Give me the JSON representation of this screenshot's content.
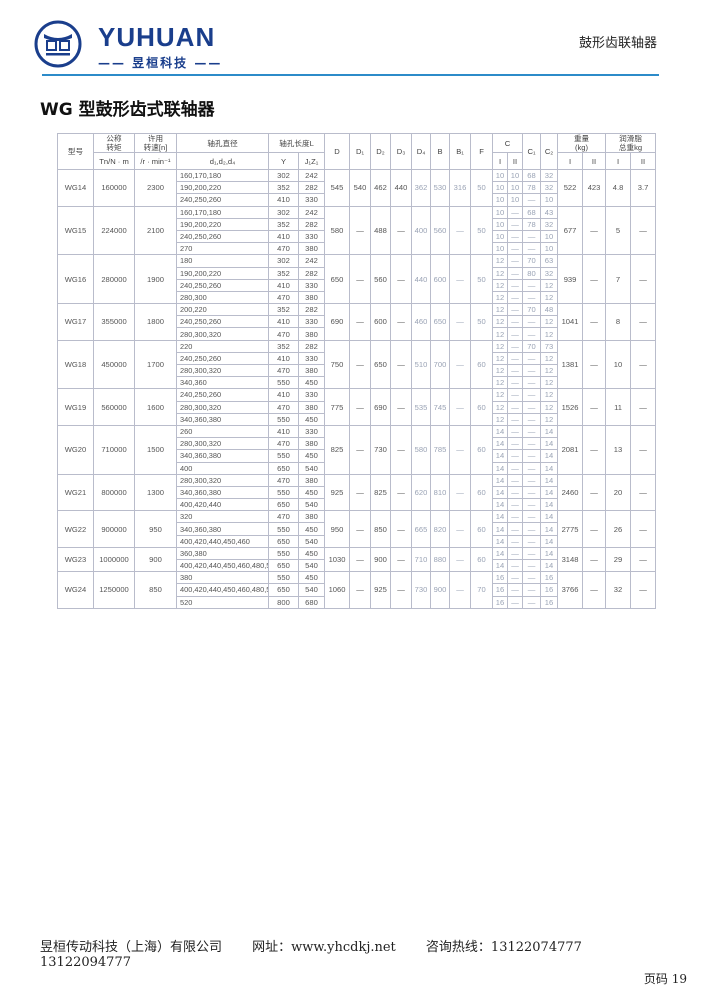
{
  "header": {
    "brand": "YUHUAN",
    "brand_cn": "—— 昱桓科技 ——",
    "section": "鼓形齿联轴器",
    "accent_color": "#2c8bc9",
    "brand_color": "#1a3e8c"
  },
  "title": "WG 型鼓形齿式联轴器",
  "table": {
    "header_top": [
      "型号",
      "公称\n转矩",
      "许用\n转速[n]",
      "轴孔直径",
      "轴孔长度L",
      "D",
      "D₁",
      "D₂",
      "D₃",
      "D₄",
      "B",
      "B₁",
      "F",
      "C",
      "C₁",
      "C₂",
      "重量\n(kg)",
      "润滑脂\n总重kg"
    ],
    "header_sub": [
      "Tn/N · m",
      "/r · min⁻¹",
      "d₁,d₂,d₄",
      "Y",
      "J₁Z₁",
      "I",
      "II",
      "I",
      "II",
      "I",
      "II"
    ],
    "groups": [
      {
        "model": "WG14",
        "torque": "160000",
        "speed": "2300",
        "D": "545",
        "D1": "540",
        "D2": "462",
        "D3": "440",
        "D4": "362",
        "B": "530",
        "B1": "316",
        "F": "50",
        "wI": "522",
        "wII": "423",
        "gI": "4.8",
        "gII": "3.7",
        "rows": [
          [
            "160,170,180",
            "302",
            "242",
            "10",
            "10",
            "68",
            "32"
          ],
          [
            "190,200,220",
            "352",
            "282",
            "10",
            "10",
            "78",
            "32"
          ],
          [
            "240,250,260",
            "410",
            "330",
            "10",
            "10",
            "—",
            "10"
          ]
        ]
      },
      {
        "model": "WG15",
        "torque": "224000",
        "speed": "2100",
        "D": "580",
        "D1": "—",
        "D2": "488",
        "D3": "—",
        "D4": "400",
        "B": "560",
        "B1": "—",
        "F": "50",
        "wI": "677",
        "wII": "—",
        "gI": "5",
        "gII": "—",
        "rows": [
          [
            "160,170,180",
            "302",
            "242",
            "10",
            "—",
            "68",
            "43"
          ],
          [
            "190,200,220",
            "352",
            "282",
            "10",
            "—",
            "78",
            "32"
          ],
          [
            "240,250,260",
            "410",
            "330",
            "10",
            "—",
            "—",
            "10"
          ],
          [
            "270",
            "470",
            "380",
            "10",
            "—",
            "—",
            "10"
          ]
        ]
      },
      {
        "model": "WG16",
        "torque": "280000",
        "speed": "1900",
        "D": "650",
        "D1": "—",
        "D2": "560",
        "D3": "—",
        "D4": "440",
        "B": "600",
        "B1": "—",
        "F": "50",
        "wI": "939",
        "wII": "—",
        "gI": "7",
        "gII": "—",
        "rows": [
          [
            "180",
            "302",
            "242",
            "12",
            "—",
            "70",
            "63"
          ],
          [
            "190,200,220",
            "352",
            "282",
            "12",
            "—",
            "80",
            "32"
          ],
          [
            "240,250,260",
            "410",
            "330",
            "12",
            "—",
            "—",
            "12"
          ],
          [
            "280,300",
            "470",
            "380",
            "12",
            "—",
            "—",
            "12"
          ]
        ]
      },
      {
        "model": "WG17",
        "torque": "355000",
        "speed": "1800",
        "D": "690",
        "D1": "—",
        "D2": "600",
        "D3": "—",
        "D4": "460",
        "B": "650",
        "B1": "—",
        "F": "50",
        "wI": "1041",
        "wII": "—",
        "gI": "8",
        "gII": "—",
        "rows": [
          [
            "200,220",
            "352",
            "282",
            "12",
            "—",
            "70",
            "48"
          ],
          [
            "240,250,260",
            "410",
            "330",
            "12",
            "—",
            "—",
            "12"
          ],
          [
            "280,300,320",
            "470",
            "380",
            "12",
            "—",
            "—",
            "12"
          ]
        ]
      },
      {
        "model": "WG18",
        "torque": "450000",
        "speed": "1700",
        "D": "750",
        "D1": "—",
        "D2": "650",
        "D3": "—",
        "D4": "510",
        "B": "700",
        "B1": "—",
        "F": "60",
        "wI": "1381",
        "wII": "—",
        "gI": "10",
        "gII": "—",
        "rows": [
          [
            "220",
            "352",
            "282",
            "12",
            "—",
            "70",
            "73"
          ],
          [
            "240,250,260",
            "410",
            "330",
            "12",
            "—",
            "—",
            "12"
          ],
          [
            "280,300,320",
            "470",
            "380",
            "12",
            "—",
            "—",
            "12"
          ],
          [
            "340,360",
            "550",
            "450",
            "12",
            "—",
            "—",
            "12"
          ]
        ]
      },
      {
        "model": "WG19",
        "torque": "560000",
        "speed": "1600",
        "D": "775",
        "D1": "—",
        "D2": "690",
        "D3": "—",
        "D4": "535",
        "B": "745",
        "B1": "—",
        "F": "60",
        "wI": "1526",
        "wII": "—",
        "gI": "11",
        "gII": "—",
        "rows": [
          [
            "240,250,260",
            "410",
            "330",
            "12",
            "—",
            "—",
            "12"
          ],
          [
            "280,300,320",
            "470",
            "380",
            "12",
            "—",
            "—",
            "12"
          ],
          [
            "340,360,380",
            "550",
            "450",
            "12",
            "—",
            "—",
            "12"
          ]
        ]
      },
      {
        "model": "WG20",
        "torque": "710000",
        "speed": "1500",
        "D": "825",
        "D1": "—",
        "D2": "730",
        "D3": "—",
        "D4": "580",
        "B": "785",
        "B1": "—",
        "F": "60",
        "wI": "2081",
        "wII": "—",
        "gI": "13",
        "gII": "—",
        "rows": [
          [
            "260",
            "410",
            "330",
            "14",
            "—",
            "—",
            "14"
          ],
          [
            "280,300,320",
            "470",
            "380",
            "14",
            "—",
            "—",
            "14"
          ],
          [
            "340,360,380",
            "550",
            "450",
            "14",
            "—",
            "—",
            "14"
          ],
          [
            "400",
            "650",
            "540",
            "14",
            "—",
            "—",
            "14"
          ]
        ]
      },
      {
        "model": "WG21",
        "torque": "800000",
        "speed": "1300",
        "D": "925",
        "D1": "—",
        "D2": "825",
        "D3": "—",
        "D4": "620",
        "B": "810",
        "B1": "—",
        "F": "60",
        "wI": "2460",
        "wII": "—",
        "gI": "20",
        "gII": "—",
        "rows": [
          [
            "280,300,320",
            "470",
            "380",
            "14",
            "—",
            "—",
            "14"
          ],
          [
            "340,360,380",
            "550",
            "450",
            "14",
            "—",
            "—",
            "14"
          ],
          [
            "400,420,440",
            "650",
            "540",
            "14",
            "—",
            "—",
            "14"
          ]
        ]
      },
      {
        "model": "WG22",
        "torque": "900000",
        "speed": "950",
        "D": "950",
        "D1": "—",
        "D2": "850",
        "D3": "—",
        "D4": "665",
        "B": "820",
        "B1": "—",
        "F": "60",
        "wI": "2775",
        "wII": "—",
        "gI": "26",
        "gII": "—",
        "rows": [
          [
            "320",
            "470",
            "380",
            "14",
            "—",
            "—",
            "14"
          ],
          [
            "340,360,380",
            "550",
            "450",
            "14",
            "—",
            "—",
            "14"
          ],
          [
            "400,420,440,450,460",
            "650",
            "540",
            "14",
            "—",
            "—",
            "14"
          ]
        ]
      },
      {
        "model": "WG23",
        "torque": "1000000",
        "speed": "900",
        "D": "1030",
        "D1": "—",
        "D2": "900",
        "D3": "—",
        "D4": "710",
        "B": "880",
        "B1": "—",
        "F": "60",
        "wI": "3148",
        "wII": "—",
        "gI": "29",
        "gII": "—",
        "rows": [
          [
            "360,380",
            "550",
            "450",
            "14",
            "—",
            "—",
            "14"
          ],
          [
            "400,420,440,450,460,480,500",
            "650",
            "540",
            "14",
            "—",
            "—",
            "14"
          ]
        ]
      },
      {
        "model": "WG24",
        "torque": "1250000",
        "speed": "850",
        "D": "1060",
        "D1": "—",
        "D2": "925",
        "D3": "—",
        "D4": "730",
        "B": "900",
        "B1": "—",
        "F": "70",
        "wI": "3766",
        "wII": "—",
        "gI": "32",
        "gII": "—",
        "rows": [
          [
            "380",
            "550",
            "450",
            "16",
            "—",
            "—",
            "16"
          ],
          [
            "400,420,440,450,460,480,500",
            "650",
            "540",
            "16",
            "—",
            "—",
            "16"
          ],
          [
            "520",
            "800",
            "680",
            "16",
            "—",
            "—",
            "16"
          ]
        ]
      }
    ]
  },
  "footer": {
    "company": "昱桓传动科技（上海）有限公司",
    "website": "网址：www.yhcdkj.net",
    "hotline": "咨询热线：13122074777　13122094777",
    "page": "页码 19"
  }
}
